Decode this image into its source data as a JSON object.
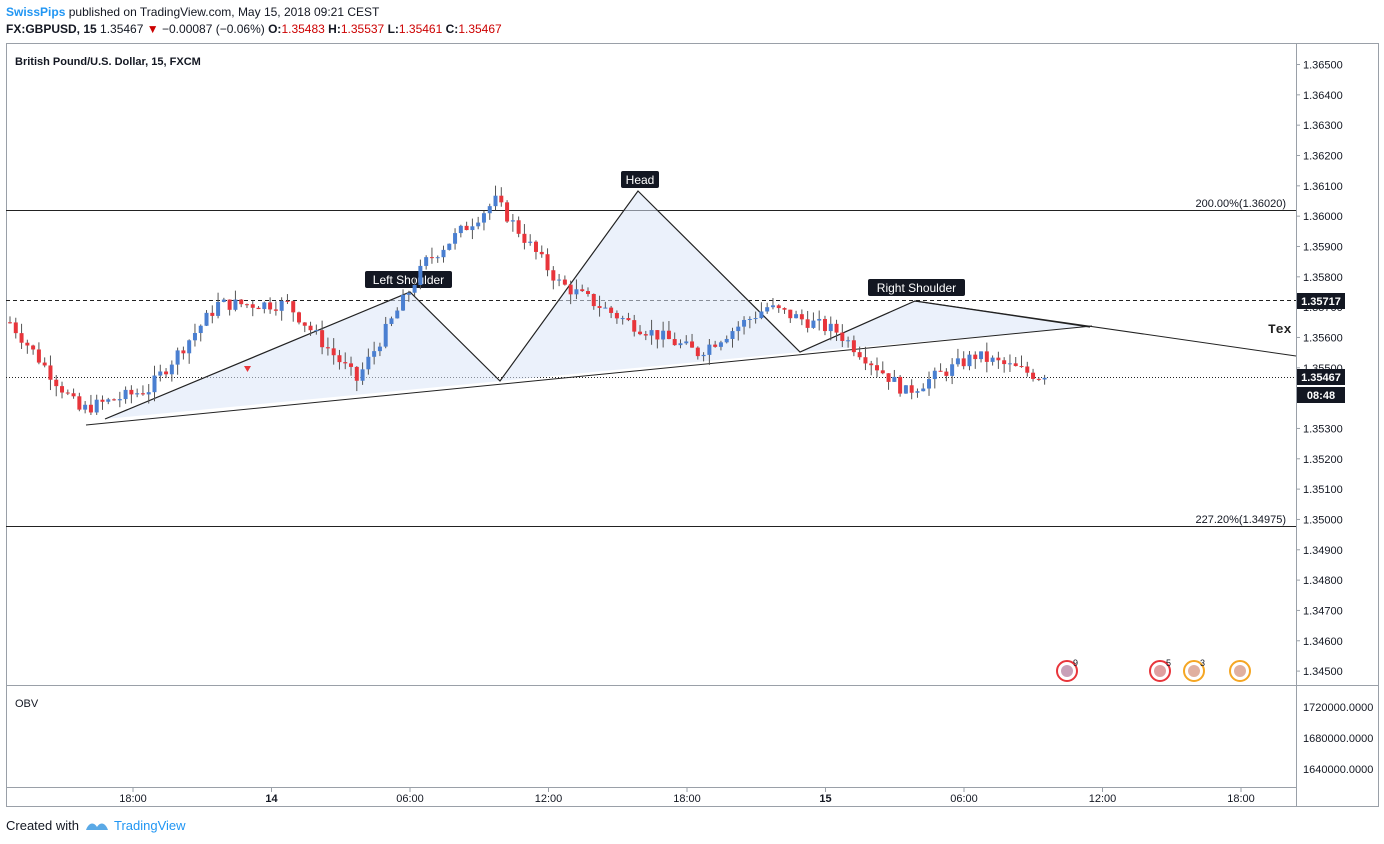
{
  "header": {
    "author": "SwissPips",
    "published_text": "published on TradingView.com, May 15, 2018 09:21 CEST",
    "symbol": "FX:GBPUSD, 15",
    "last": "1.35467",
    "change": "−0.00087 (−0.06%)",
    "open_label": "O:",
    "open": "1.35483",
    "high_label": "H:",
    "high": "1.35537",
    "low_label": "L:",
    "low": "1.35461",
    "close_label": "C:",
    "close": "1.35467"
  },
  "chart_data": {
    "type": "candlestick",
    "title": "British Pound/U.S. Dollar, 15, FXCM",
    "y_range": [
      1.3444,
      1.3658
    ],
    "y_ticks": [
      "1.36500",
      "1.36400",
      "1.36300",
      "1.36200",
      "1.36100",
      "1.36000",
      "1.35900",
      "1.35800",
      "1.35700",
      "1.35600",
      "1.35500",
      "1.35400",
      "1.35300",
      "1.35200",
      "1.35100",
      "1.35000",
      "1.34900",
      "1.34800",
      "1.34700",
      "1.34600",
      "1.34500"
    ],
    "x_ticks": [
      "18:00",
      "14",
      "06:00",
      "12:00",
      "18:00",
      "15",
      "06:00",
      "12:00",
      "18:00"
    ],
    "close_series_key_points": [
      {
        "x": "13 May 16:15",
        "close": 1.3565
      },
      {
        "x": "13 May 17:00",
        "close": 1.3536
      },
      {
        "x": "13 May 20:00",
        "close": 1.3543
      },
      {
        "x": "14 May 03:00",
        "close": 1.3571
      },
      {
        "x": "14 May 05:00",
        "close": 1.3571
      },
      {
        "x": "14 May 08:15",
        "close": 1.3546
      },
      {
        "x": "14 May 10:00",
        "close": 1.3585
      },
      {
        "x": "14 May 16:00",
        "close": 1.3605
      },
      {
        "x": "14 May 19:00",
        "close": 1.3578
      },
      {
        "x": "14 May 21:00",
        "close": 1.3565
      },
      {
        "x": "14 May 23:30",
        "close": 1.3555
      },
      {
        "x": "15 May 03:00",
        "close": 1.357
      },
      {
        "x": "15 May 05:00",
        "close": 1.3562
      },
      {
        "x": "15 May 06:30",
        "close": 1.3542
      },
      {
        "x": "15 May 08:30",
        "close": 1.3554
      },
      {
        "x": "15 May 09:15",
        "close": 1.35467
      }
    ],
    "pattern_labels": [
      "Left Shoulder",
      "Head",
      "Right Shoulder"
    ],
    "fib_levels": [
      {
        "label": "200.00%(1.36020)",
        "price": 1.3602
      },
      {
        "label": "227.20%(1.34975)",
        "price": 1.34975
      }
    ],
    "price_markers": [
      {
        "label": "1.35717",
        "price": 1.35717,
        "style": "dashed"
      },
      {
        "label": "1.35467",
        "price": 1.35467,
        "style": "dotted"
      }
    ],
    "countdown": "08:48",
    "cut_text": "Tex",
    "event_badges": [
      "9",
      "5",
      "3"
    ],
    "obv": {
      "label": "OBV",
      "y_ticks": [
        "1720000.0000",
        "1680000.0000",
        "1640000.0000"
      ]
    }
  },
  "footer": {
    "created_with": "Created with",
    "brand": "TradingView"
  },
  "colors": {
    "up": "#4a7fd1",
    "down": "#e8353b",
    "accent": "#2196f3",
    "pattern_fill": "#dbe5f7"
  }
}
